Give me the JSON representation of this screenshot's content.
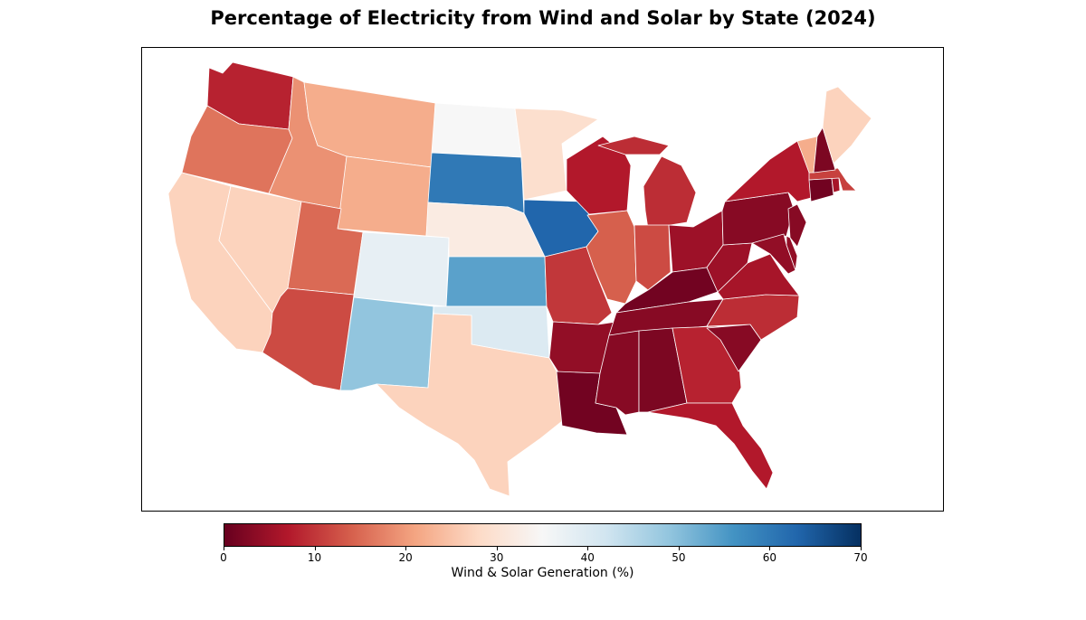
{
  "title": "Percentage of Electricity from Wind and Solar by State (2024)",
  "colorbar": {
    "label": "Wind & Solar Generation (%)",
    "min": 0,
    "max": 70,
    "ticks": [
      "0",
      "10",
      "20",
      "30",
      "40",
      "50",
      "60",
      "70"
    ],
    "colormap": "RdBu",
    "stops": [
      "#67001f",
      "#b2182b",
      "#d6604d",
      "#f4a582",
      "#fddbc7",
      "#f7f7f7",
      "#d1e5f0",
      "#92c5de",
      "#4393c3",
      "#2166ac",
      "#053061"
    ]
  },
  "states": [
    {
      "id": "WA",
      "value": 8
    },
    {
      "id": "OR",
      "value": 16
    },
    {
      "id": "CA",
      "value": 27
    },
    {
      "id": "NV",
      "value": 27
    },
    {
      "id": "ID",
      "value": 19
    },
    {
      "id": "MT",
      "value": 22
    },
    {
      "id": "WY",
      "value": 22
    },
    {
      "id": "UT",
      "value": 15
    },
    {
      "id": "AZ",
      "value": 12
    },
    {
      "id": "CO",
      "value": 38
    },
    {
      "id": "NM",
      "value": 49
    },
    {
      "id": "ND",
      "value": 35
    },
    {
      "id": "SD",
      "value": 60
    },
    {
      "id": "NE",
      "value": 32
    },
    {
      "id": "KS",
      "value": 54
    },
    {
      "id": "OK",
      "value": 40
    },
    {
      "id": "TX",
      "value": 27
    },
    {
      "id": "MN",
      "value": 29
    },
    {
      "id": "IA",
      "value": 63
    },
    {
      "id": "MO",
      "value": 10
    },
    {
      "id": "AR",
      "value": 4
    },
    {
      "id": "LA",
      "value": 1
    },
    {
      "id": "WI",
      "value": 7
    },
    {
      "id": "IL",
      "value": 14
    },
    {
      "id": "MI",
      "value": 9
    },
    {
      "id": "IN",
      "value": 12
    },
    {
      "id": "OH",
      "value": 5
    },
    {
      "id": "KY",
      "value": 1
    },
    {
      "id": "TN",
      "value": 3
    },
    {
      "id": "MS",
      "value": 3
    },
    {
      "id": "AL",
      "value": 2
    },
    {
      "id": "GA",
      "value": 8
    },
    {
      "id": "FL",
      "value": 7
    },
    {
      "id": "SC",
      "value": 3
    },
    {
      "id": "NC",
      "value": 9
    },
    {
      "id": "VA",
      "value": 6
    },
    {
      "id": "WV",
      "value": 5
    },
    {
      "id": "PA",
      "value": 3
    },
    {
      "id": "NY",
      "value": 7
    },
    {
      "id": "VT",
      "value": 22
    },
    {
      "id": "NH",
      "value": 2
    },
    {
      "id": "ME",
      "value": 27
    },
    {
      "id": "MA",
      "value": 11
    },
    {
      "id": "RI",
      "value": 6
    },
    {
      "id": "CT",
      "value": 1
    },
    {
      "id": "NJ",
      "value": 3
    },
    {
      "id": "DE",
      "value": 4
    },
    {
      "id": "MD",
      "value": 4
    }
  ]
}
